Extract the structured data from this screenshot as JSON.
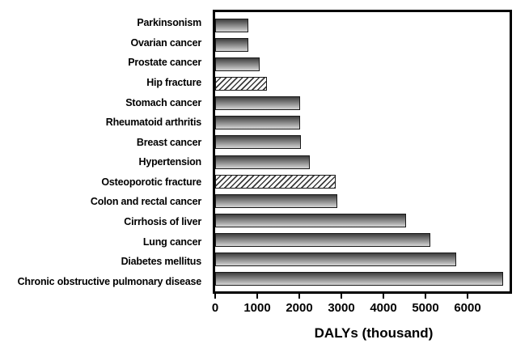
{
  "chart_data": {
    "type": "bar",
    "orientation": "horizontal",
    "title": "",
    "xlabel": "DALYs (thousand)",
    "ylabel": "",
    "xlim": [
      0,
      7000
    ],
    "xticks": [
      0,
      1000,
      2000,
      3000,
      4000,
      5000,
      6000
    ],
    "grid": false,
    "legend": false,
    "series": [
      {
        "label": "Parkinsonism",
        "value": 780,
        "pattern": "gradient-gray"
      },
      {
        "label": "Ovarian cancer",
        "value": 790,
        "pattern": "gradient-gray"
      },
      {
        "label": "Prostate cancer",
        "value": 1050,
        "pattern": "gradient-gray"
      },
      {
        "label": "Hip fracture",
        "value": 1225,
        "pattern": "hatched"
      },
      {
        "label": "Stomach cancer",
        "value": 2015,
        "pattern": "gradient-gray"
      },
      {
        "label": "Rheumatoid arthritis",
        "value": 2020,
        "pattern": "gradient-gray"
      },
      {
        "label": "Breast cancer",
        "value": 2030,
        "pattern": "gradient-gray"
      },
      {
        "label": "Hypertension",
        "value": 2245,
        "pattern": "gradient-gray"
      },
      {
        "label": "Osteoporotic fracture",
        "value": 2865,
        "pattern": "hatched"
      },
      {
        "label": "Colon and rectal cancer",
        "value": 2905,
        "pattern": "gradient-gray"
      },
      {
        "label": "Cirrhosis of liver",
        "value": 4530,
        "pattern": "gradient-gray"
      },
      {
        "label": "Lung cancer",
        "value": 5115,
        "pattern": "gradient-gray"
      },
      {
        "label": "Diabetes mellitus",
        "value": 5730,
        "pattern": "gradient-gray"
      },
      {
        "label": "Chronic obstructive pulmonary disease",
        "value": 6845,
        "pattern": "gradient-gray"
      }
    ],
    "colors": {
      "bar_gradient_top": "#3d3d3d",
      "bar_gradient_bottom": "#d6d6d6",
      "bar_border": "#1a1a1a",
      "hatch_line": "#3a3a3a",
      "hatch_background": "#ffffff",
      "axis": "#000000",
      "plot_background": "#ffffff",
      "text": "#000000"
    }
  }
}
